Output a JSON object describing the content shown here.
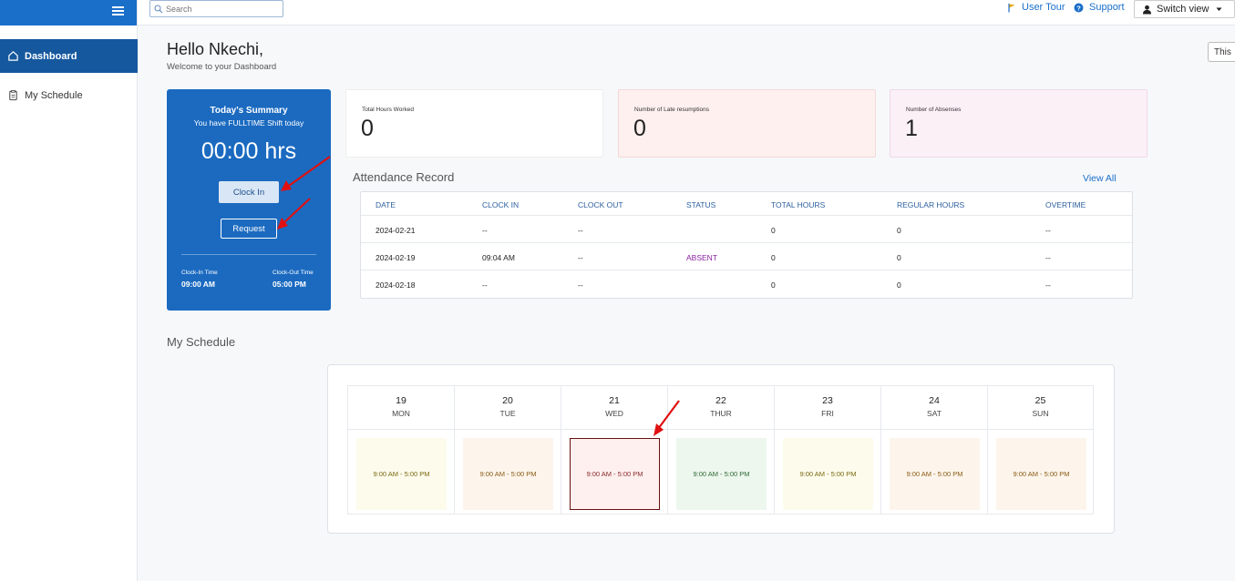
{
  "sidebar": {
    "items": [
      {
        "label": "Dashboard",
        "icon": "home-icon",
        "active": true
      },
      {
        "label": "My Schedule",
        "icon": "clipboard-icon",
        "active": false
      }
    ]
  },
  "topbar": {
    "search_placeholder": "Search",
    "user_tour": "User Tour",
    "support": "Support",
    "switch_view": "Switch view",
    "period_button": "This"
  },
  "greeting": {
    "title": "Hello Nkechi,",
    "subtitle": "Welcome to your Dashboard"
  },
  "summary": {
    "title": "Today's Summary",
    "shift_text": "You have FULLTIME Shift today",
    "hours": "00:00 hrs",
    "clock_in_label": "Clock In",
    "request_label": "Request",
    "clock_in_time_label": "Clock-In Time",
    "clock_in_time": "09:00 AM",
    "clock_out_time_label": "Clock-Out Time",
    "clock_out_time": "05:00 PM"
  },
  "stats": [
    {
      "label": "Total Hours Worked",
      "value": "0",
      "bg": "#ffffff"
    },
    {
      "label": "Number of Late resumptions",
      "value": "0",
      "bg": "#fdf0ef"
    },
    {
      "label": "Number of Absenses",
      "value": "1",
      "bg": "#fcf0f7"
    }
  ],
  "attendance": {
    "title": "Attendance Record",
    "view_all": "View All",
    "columns": [
      "DATE",
      "CLOCK IN",
      "CLOCK OUT",
      "STATUS",
      "TOTAL HOURS",
      "REGULAR HOURS",
      "OVERTIME"
    ],
    "rows": [
      [
        "2024-02-21",
        "--",
        "--",
        "",
        "0",
        "0",
        "--"
      ],
      [
        "2024-02-19",
        "09:04 AM",
        "--",
        "ABSENT",
        "0",
        "0",
        "--"
      ],
      [
        "2024-02-18",
        "--",
        "--",
        "",
        "0",
        "0",
        "--"
      ]
    ]
  },
  "schedule": {
    "title": "My Schedule",
    "days": [
      {
        "num": "19",
        "name": "MON",
        "shift": "9:00 AM - 5:00 PM",
        "bg": "#fdfbec",
        "fg": "#7a6a10",
        "border": ""
      },
      {
        "num": "20",
        "name": "TUE",
        "shift": "9:00 AM - 5:00 PM",
        "bg": "#fdf5ec",
        "fg": "#8a5a12",
        "border": ""
      },
      {
        "num": "21",
        "name": "WED",
        "shift": "9:00 AM - 5:00 PM",
        "bg": "#fdf0ef",
        "fg": "#8a2a2a",
        "border": "#6b0f0f"
      },
      {
        "num": "22",
        "name": "THUR",
        "shift": "9:00 AM - 5:00 PM",
        "bg": "#edf7ee",
        "fg": "#2f6a34",
        "border": ""
      },
      {
        "num": "23",
        "name": "FRI",
        "shift": "9:00 AM - 5:00 PM",
        "bg": "#fdfbec",
        "fg": "#7a6a10",
        "border": ""
      },
      {
        "num": "24",
        "name": "SAT",
        "shift": "9:00 AM - 5:00 PM",
        "bg": "#fdf5ec",
        "fg": "#8a5a12",
        "border": ""
      },
      {
        "num": "25",
        "name": "SUN",
        "shift": "9:00 AM - 5:00 PM",
        "bg": "#fdf5ec",
        "fg": "#8a5a12",
        "border": ""
      }
    ]
  },
  "colors": {
    "primary": "#1b6ac0",
    "sidebar_active": "#16589e",
    "annotation_arrow": "#e01010"
  }
}
